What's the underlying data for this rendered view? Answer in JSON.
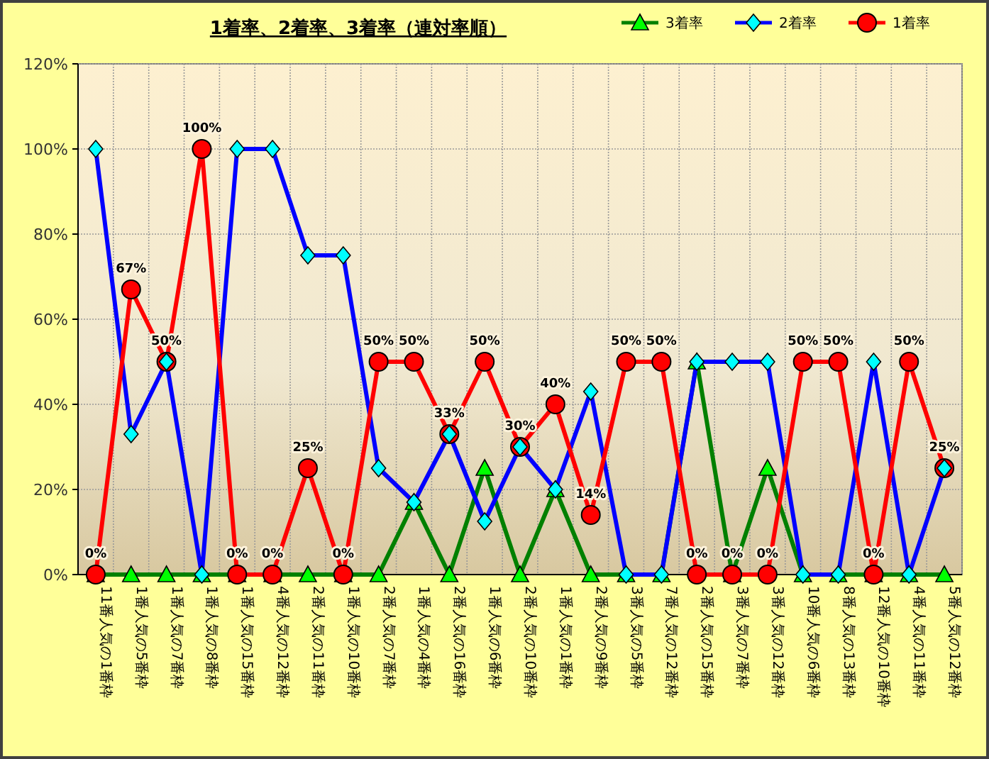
{
  "chart_data": {
    "type": "line",
    "title": "1着率、2着率、3着率（連対率順）",
    "categories": [
      "11番人気の1番枠",
      "1番人気の5番枠",
      "1番人気の7番枠",
      "1番人気の8番枠",
      "1番人気の15番枠",
      "4番人気の12番枠",
      "2番人気の11番枠",
      "1番人気の10番枠",
      "2番人気の7番枠",
      "1番人気の4番枠",
      "2番人気の16番枠",
      "1番人気の6番枠",
      "2番人気の10番枠",
      "1番人気の1番枠",
      "2番人気の9番枠",
      "3番人気の5番枠",
      "7番人気の12番枠",
      "2番人気の15番枠",
      "3番人気の7番枠",
      "3番人気の12番枠",
      "10番人気の6番枠",
      "8番人気の13番枠",
      "12番人気の10番枠",
      "4番人気の11番枠",
      "5番人気の12番枠"
    ],
    "series": [
      {
        "name": "3着率",
        "color": "#008000",
        "marker": "triangle",
        "values": [
          0,
          0,
          0,
          0,
          0,
          0,
          0,
          0,
          0,
          17,
          0,
          25,
          0,
          20,
          0,
          0,
          0,
          50,
          0,
          25,
          0,
          0,
          0,
          0,
          0
        ]
      },
      {
        "name": "2着率",
        "color": "#0000ff",
        "marker": "diamond",
        "values": [
          100,
          33,
          50,
          0,
          100,
          100,
          75,
          75,
          25,
          17,
          33,
          12.5,
          30,
          20,
          43,
          0,
          0,
          50,
          50,
          50,
          0,
          0,
          50,
          0,
          25
        ]
      },
      {
        "name": "1着率",
        "color": "#ff0000",
        "marker": "circle",
        "values": [
          0,
          67,
          50,
          100,
          0,
          0,
          25,
          0,
          50,
          50,
          33,
          50,
          30,
          40,
          14,
          50,
          50,
          0,
          0,
          0,
          50,
          50,
          0,
          50,
          25
        ],
        "value_labels": [
          "0%",
          "67%",
          "50%",
          "100%",
          "0%",
          "0%",
          "25%",
          "0%",
          "50%",
          "50%",
          "33%",
          "50%",
          "30%",
          "40%",
          "14%",
          "50%",
          "50%",
          "0%",
          "0%",
          "0%",
          "50%",
          "50%",
          "0%",
          "50%",
          "25%"
        ]
      }
    ],
    "ylim": [
      0,
      120
    ],
    "yticks": [
      {
        "value": 0,
        "label": "0%"
      },
      {
        "value": 20,
        "label": "20%"
      },
      {
        "value": 40,
        "label": "40%"
      },
      {
        "value": 60,
        "label": "60%"
      },
      {
        "value": 80,
        "label": "80%"
      },
      {
        "value": 100,
        "label": "100%"
      },
      {
        "value": 120,
        "label": "120%"
      }
    ],
    "grid": true,
    "legend": "top right",
    "line_style": "solid"
  }
}
